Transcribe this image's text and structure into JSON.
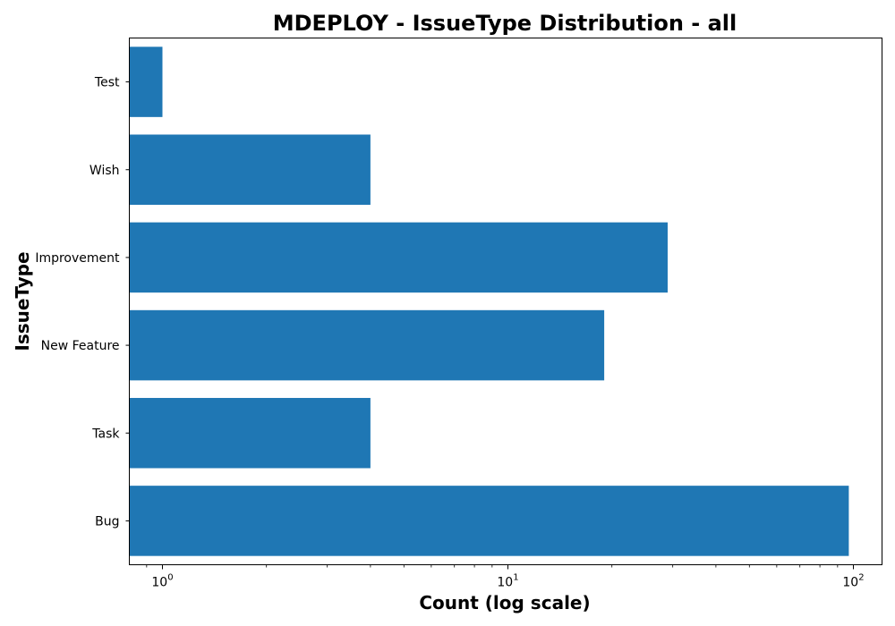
{
  "chart_data": {
    "type": "bar",
    "orientation": "horizontal",
    "title": "MDEPLOY - IssueType Distribution - all",
    "xlabel": "Count (log scale)",
    "ylabel": "IssueType",
    "x_scale": "log",
    "xlim": [
      0.8,
      120
    ],
    "x_ticks": [
      {
        "base": "10",
        "exp": "0",
        "value": 1
      },
      {
        "base": "10",
        "exp": "1",
        "value": 10
      },
      {
        "base": "10",
        "exp": "2",
        "value": 100
      }
    ],
    "categories": [
      "Bug",
      "Task",
      "New Feature",
      "Improvement",
      "Wish",
      "Test"
    ],
    "values": [
      97,
      4,
      19,
      29,
      4,
      1
    ],
    "bar_color": "#1f77b4",
    "grid": false
  }
}
